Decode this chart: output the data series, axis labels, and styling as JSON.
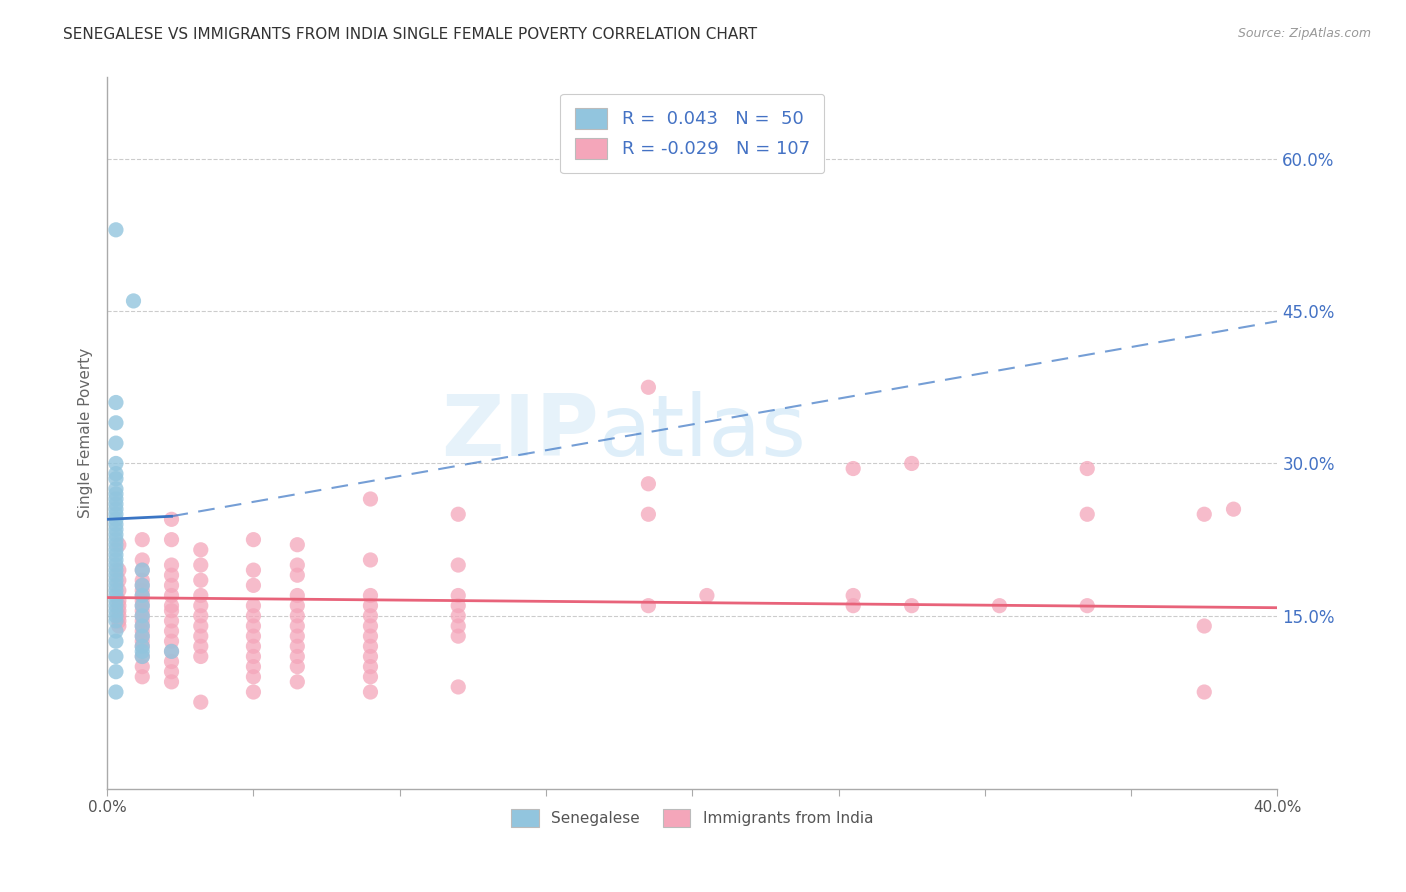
{
  "title": "SENEGALESE VS IMMIGRANTS FROM INDIA SINGLE FEMALE POVERTY CORRELATION CHART",
  "source": "Source: ZipAtlas.com",
  "ylabel": "Single Female Poverty",
  "xlim": [
    0.0,
    0.4
  ],
  "ylim": [
    -0.02,
    0.68
  ],
  "plot_ylim": [
    -0.02,
    0.68
  ],
  "xtick_labels": [
    "0.0%",
    "",
    "",
    "",
    "",
    "",
    "",
    "",
    "40.0%"
  ],
  "xtick_values": [
    0.0,
    0.05,
    0.1,
    0.15,
    0.2,
    0.25,
    0.3,
    0.35,
    0.4
  ],
  "ytick_labels_right": [
    "15.0%",
    "30.0%",
    "45.0%",
    "60.0%"
  ],
  "ytick_values_right": [
    0.15,
    0.3,
    0.45,
    0.6
  ],
  "watermark": "ZIPatlas",
  "blue_color": "#92c5de",
  "pink_color": "#f4a6ba",
  "blue_line_color": "#3a75c4",
  "pink_line_color": "#e8637a",
  "blue_scatter": [
    [
      0.003,
      0.53
    ],
    [
      0.009,
      0.46
    ],
    [
      0.003,
      0.36
    ],
    [
      0.003,
      0.34
    ],
    [
      0.003,
      0.32
    ],
    [
      0.003,
      0.3
    ],
    [
      0.003,
      0.29
    ],
    [
      0.003,
      0.285
    ],
    [
      0.003,
      0.275
    ],
    [
      0.003,
      0.27
    ],
    [
      0.003,
      0.265
    ],
    [
      0.003,
      0.26
    ],
    [
      0.003,
      0.255
    ],
    [
      0.003,
      0.25
    ],
    [
      0.003,
      0.245
    ],
    [
      0.003,
      0.24
    ],
    [
      0.003,
      0.235
    ],
    [
      0.003,
      0.23
    ],
    [
      0.003,
      0.225
    ],
    [
      0.003,
      0.22
    ],
    [
      0.003,
      0.215
    ],
    [
      0.003,
      0.21
    ],
    [
      0.003,
      0.205
    ],
    [
      0.003,
      0.2
    ],
    [
      0.003,
      0.195
    ],
    [
      0.003,
      0.19
    ],
    [
      0.003,
      0.185
    ],
    [
      0.003,
      0.18
    ],
    [
      0.003,
      0.175
    ],
    [
      0.003,
      0.17
    ],
    [
      0.003,
      0.165
    ],
    [
      0.003,
      0.16
    ],
    [
      0.003,
      0.155
    ],
    [
      0.003,
      0.15
    ],
    [
      0.003,
      0.145
    ],
    [
      0.003,
      0.135
    ],
    [
      0.003,
      0.125
    ],
    [
      0.003,
      0.11
    ],
    [
      0.003,
      0.095
    ],
    [
      0.003,
      0.075
    ],
    [
      0.012,
      0.195
    ],
    [
      0.012,
      0.18
    ],
    [
      0.012,
      0.17
    ],
    [
      0.012,
      0.16
    ],
    [
      0.012,
      0.15
    ],
    [
      0.012,
      0.14
    ],
    [
      0.012,
      0.13
    ],
    [
      0.012,
      0.12
    ],
    [
      0.012,
      0.115
    ],
    [
      0.012,
      0.11
    ],
    [
      0.022,
      0.115
    ]
  ],
  "pink_scatter": [
    [
      0.004,
      0.22
    ],
    [
      0.004,
      0.195
    ],
    [
      0.004,
      0.185
    ],
    [
      0.004,
      0.175
    ],
    [
      0.004,
      0.165
    ],
    [
      0.004,
      0.16
    ],
    [
      0.004,
      0.155
    ],
    [
      0.004,
      0.15
    ],
    [
      0.004,
      0.145
    ],
    [
      0.004,
      0.14
    ],
    [
      0.012,
      0.225
    ],
    [
      0.012,
      0.205
    ],
    [
      0.012,
      0.195
    ],
    [
      0.012,
      0.185
    ],
    [
      0.012,
      0.18
    ],
    [
      0.012,
      0.175
    ],
    [
      0.012,
      0.17
    ],
    [
      0.012,
      0.165
    ],
    [
      0.012,
      0.16
    ],
    [
      0.012,
      0.155
    ],
    [
      0.012,
      0.15
    ],
    [
      0.012,
      0.145
    ],
    [
      0.012,
      0.14
    ],
    [
      0.012,
      0.135
    ],
    [
      0.012,
      0.13
    ],
    [
      0.012,
      0.125
    ],
    [
      0.012,
      0.12
    ],
    [
      0.012,
      0.11
    ],
    [
      0.012,
      0.1
    ],
    [
      0.012,
      0.09
    ],
    [
      0.022,
      0.245
    ],
    [
      0.022,
      0.225
    ],
    [
      0.022,
      0.2
    ],
    [
      0.022,
      0.19
    ],
    [
      0.022,
      0.18
    ],
    [
      0.022,
      0.17
    ],
    [
      0.022,
      0.16
    ],
    [
      0.022,
      0.155
    ],
    [
      0.022,
      0.145
    ],
    [
      0.022,
      0.135
    ],
    [
      0.022,
      0.125
    ],
    [
      0.022,
      0.115
    ],
    [
      0.022,
      0.105
    ],
    [
      0.022,
      0.095
    ],
    [
      0.022,
      0.085
    ],
    [
      0.032,
      0.215
    ],
    [
      0.032,
      0.2
    ],
    [
      0.032,
      0.185
    ],
    [
      0.032,
      0.17
    ],
    [
      0.032,
      0.16
    ],
    [
      0.032,
      0.15
    ],
    [
      0.032,
      0.14
    ],
    [
      0.032,
      0.13
    ],
    [
      0.032,
      0.12
    ],
    [
      0.032,
      0.11
    ],
    [
      0.032,
      0.065
    ],
    [
      0.05,
      0.225
    ],
    [
      0.05,
      0.195
    ],
    [
      0.05,
      0.18
    ],
    [
      0.05,
      0.16
    ],
    [
      0.05,
      0.15
    ],
    [
      0.05,
      0.14
    ],
    [
      0.05,
      0.13
    ],
    [
      0.05,
      0.12
    ],
    [
      0.05,
      0.11
    ],
    [
      0.05,
      0.1
    ],
    [
      0.05,
      0.09
    ],
    [
      0.05,
      0.075
    ],
    [
      0.065,
      0.22
    ],
    [
      0.065,
      0.2
    ],
    [
      0.065,
      0.19
    ],
    [
      0.065,
      0.17
    ],
    [
      0.065,
      0.16
    ],
    [
      0.065,
      0.15
    ],
    [
      0.065,
      0.14
    ],
    [
      0.065,
      0.13
    ],
    [
      0.065,
      0.12
    ],
    [
      0.065,
      0.11
    ],
    [
      0.065,
      0.1
    ],
    [
      0.065,
      0.085
    ],
    [
      0.09,
      0.265
    ],
    [
      0.09,
      0.205
    ],
    [
      0.09,
      0.17
    ],
    [
      0.09,
      0.16
    ],
    [
      0.09,
      0.15
    ],
    [
      0.09,
      0.14
    ],
    [
      0.09,
      0.13
    ],
    [
      0.09,
      0.12
    ],
    [
      0.09,
      0.11
    ],
    [
      0.09,
      0.1
    ],
    [
      0.09,
      0.09
    ],
    [
      0.09,
      0.075
    ],
    [
      0.12,
      0.25
    ],
    [
      0.12,
      0.2
    ],
    [
      0.12,
      0.17
    ],
    [
      0.12,
      0.16
    ],
    [
      0.12,
      0.15
    ],
    [
      0.12,
      0.14
    ],
    [
      0.12,
      0.13
    ],
    [
      0.12,
      0.08
    ],
    [
      0.185,
      0.375
    ],
    [
      0.185,
      0.28
    ],
    [
      0.185,
      0.25
    ],
    [
      0.185,
      0.16
    ],
    [
      0.205,
      0.17
    ],
    [
      0.255,
      0.295
    ],
    [
      0.255,
      0.17
    ],
    [
      0.255,
      0.16
    ],
    [
      0.275,
      0.3
    ],
    [
      0.275,
      0.16
    ],
    [
      0.305,
      0.16
    ],
    [
      0.335,
      0.295
    ],
    [
      0.335,
      0.25
    ],
    [
      0.335,
      0.16
    ],
    [
      0.375,
      0.25
    ],
    [
      0.375,
      0.14
    ],
    [
      0.375,
      0.075
    ],
    [
      0.385,
      0.255
    ]
  ],
  "blue_trendline_solid": [
    [
      0.0,
      0.245
    ],
    [
      0.022,
      0.248
    ]
  ],
  "blue_trendline_dash": [
    [
      0.022,
      0.248
    ],
    [
      0.4,
      0.44
    ]
  ],
  "pink_trendline": [
    [
      0.0,
      0.168
    ],
    [
      0.4,
      0.158
    ]
  ]
}
